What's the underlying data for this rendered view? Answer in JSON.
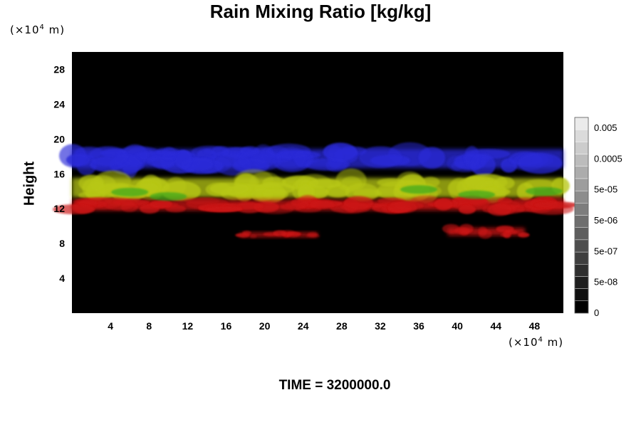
{
  "chart_data": {
    "type": "heatmap",
    "title": "Rain Mixing Ratio [kg/kg]",
    "ylabel": "Height",
    "y_unit_prefix": "(×10",
    "y_unit_exp": "4",
    "y_unit_suffix": " m)",
    "x_unit_prefix": "(×10",
    "x_unit_exp": "4",
    "x_unit_suffix": " m)",
    "xlim": [
      0,
      51
    ],
    "ylim": [
      0,
      30
    ],
    "x_ticks": [
      4,
      8,
      12,
      16,
      20,
      24,
      28,
      32,
      36,
      40,
      44,
      48
    ],
    "y_ticks": [
      4,
      8,
      12,
      16,
      20,
      24,
      28
    ],
    "background": "#000000",
    "colorbar": {
      "scale": "log",
      "labels": [
        "0.005",
        "0.0005",
        "5e-05",
        "5e-06",
        "5e-07",
        "5e-08",
        "0"
      ]
    },
    "bands": [
      {
        "color": "#2a2ad8",
        "x": [
          0,
          51
        ],
        "y": [
          16.2,
          19.3
        ]
      },
      {
        "color": "#b8c814",
        "x": [
          0,
          51
        ],
        "y": [
          12.8,
          16.0
        ]
      },
      {
        "color": "#cc1212",
        "x": [
          0,
          51
        ],
        "y": [
          11.5,
          13.3
        ]
      },
      {
        "color": "#cc1212",
        "x": [
          17.5,
          25.5
        ],
        "y": [
          8.6,
          9.4
        ]
      },
      {
        "color": "#cc1212",
        "x": [
          39,
          47
        ],
        "y": [
          8.7,
          10.0
        ]
      }
    ]
  },
  "time_label": "TIME = 3200000.0",
  "colors": {
    "blue": "#2a2ad8",
    "yellow_green": "#b8c814",
    "green": "#3aa81e",
    "red": "#cc1212"
  }
}
